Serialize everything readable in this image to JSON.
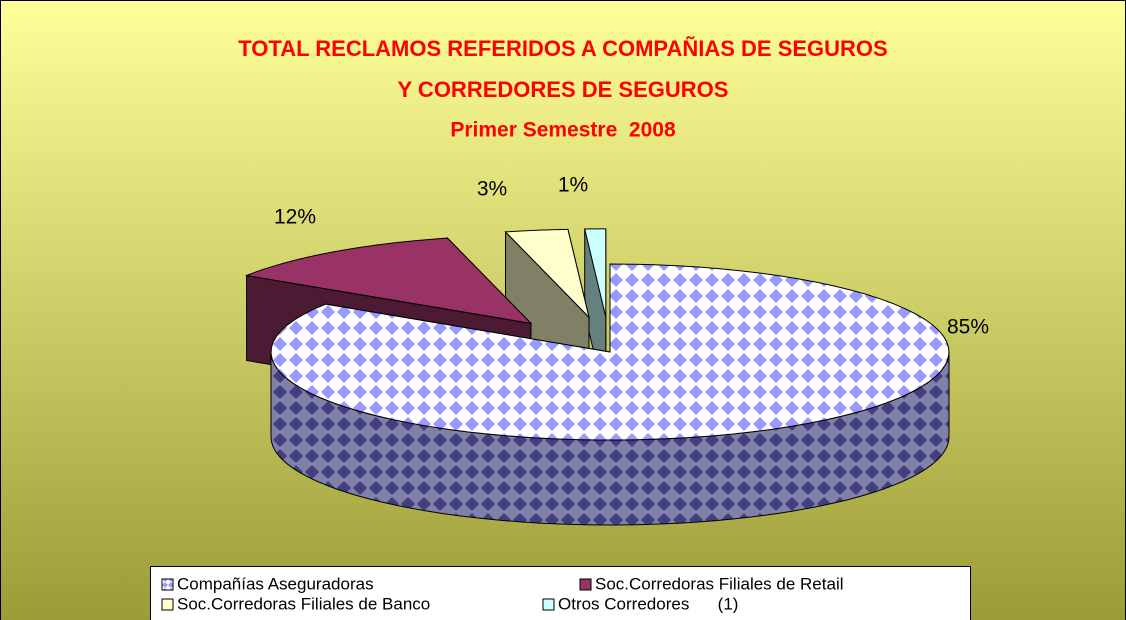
{
  "chart_data": {
    "type": "pie",
    "title": [
      "TOTAL RECLAMOS REFERIDOS A COMPAÑIAS DE SEGUROS",
      "Y CORREDORES DE SEGUROS",
      "Primer Semestre  2008"
    ],
    "categories": [
      "Compañías Aseguradoras",
      "Soc.Corredoras Filiales de Retail",
      "Soc.Corredoras Filiales de Banco",
      "Otros Corredores      (1)"
    ],
    "values": [
      85,
      12,
      3,
      1
    ],
    "value_labels": [
      "85%",
      "12%",
      "3%",
      "1%"
    ],
    "colors": [
      "#9999ff",
      "#993366",
      "#ffffcc",
      "#ccffff"
    ]
  }
}
